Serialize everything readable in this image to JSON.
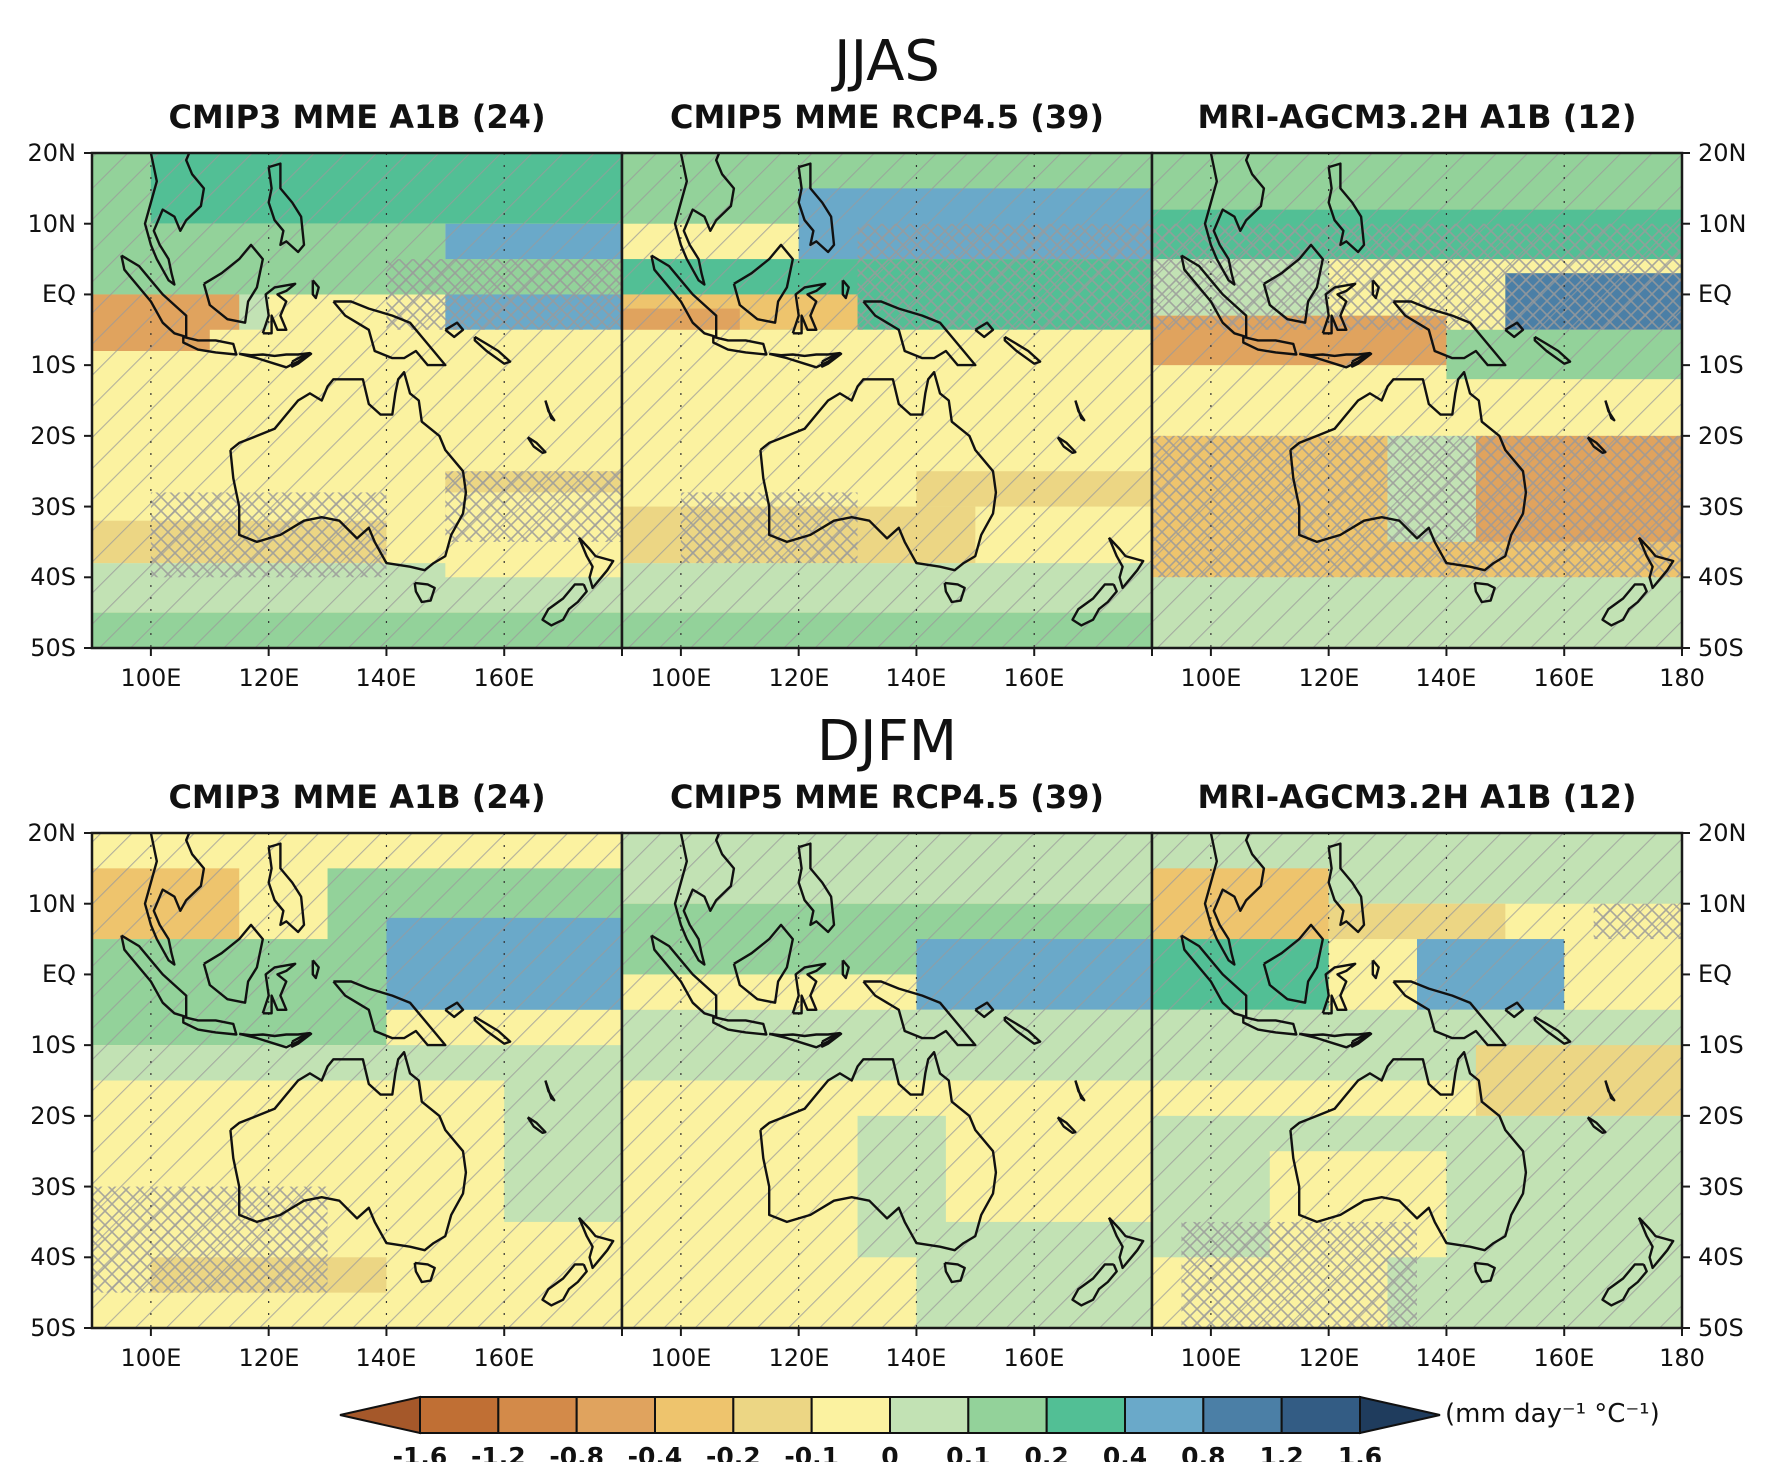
{
  "rows": [
    {
      "season": "JJAS",
      "panels": [
        {
          "title": "CMIP3 MME A1B (24)"
        },
        {
          "title": "CMIP5 MME RCP4.5 (39)"
        },
        {
          "title": "MRI-AGCM3.2H A1B (12)"
        }
      ]
    },
    {
      "season": "DJFM",
      "panels": [
        {
          "title": "CMIP3 MME A1B (24)"
        },
        {
          "title": "CMIP5 MME RCP4.5 (39)"
        },
        {
          "title": "MRI-AGCM3.2H A1B (12)"
        }
      ]
    }
  ],
  "axes": {
    "lat_labels": [
      "20N",
      "10N",
      "EQ",
      "10S",
      "20S",
      "30S",
      "40S",
      "50S"
    ],
    "lat_range": [
      -50,
      20
    ],
    "lon_range": [
      90,
      180
    ],
    "lon_labels_standard": [
      "100E",
      "120E",
      "140E",
      "160E"
    ],
    "lon_labels_last": [
      "100E",
      "120E",
      "140E",
      "160E",
      "180"
    ]
  },
  "colorbar": {
    "levels": [
      "-1.6",
      "-1.2",
      "-0.8",
      "-0.4",
      "-0.2",
      "-0.1",
      "0",
      "0.1",
      "0.2",
      "0.4",
      "0.8",
      "1.2",
      "1.6"
    ],
    "colors": [
      "#a5582a",
      "#c06f34",
      "#d38a49",
      "#e0a35e",
      "#eec46d",
      "#ecd684",
      "#fbf2a0",
      "#c2e2b4",
      "#93d29a",
      "#52bf95",
      "#6aa9c9",
      "#4b7fa6",
      "#335c84",
      "#1f3c5d"
    ],
    "units": "(mm day⁻¹ °C⁻¹)"
  },
  "colors": {
    "frame": "#1a1a1a",
    "coast": "#111111",
    "hatch": "#9a9a9a"
  }
}
